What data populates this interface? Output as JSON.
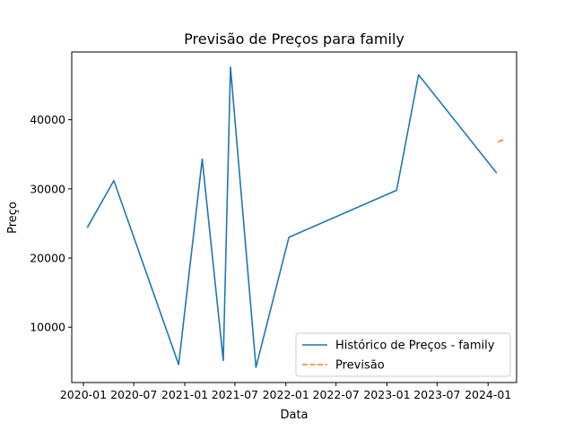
{
  "chart_data": {
    "type": "line",
    "title": "Previsão de Preços para family",
    "xlabel": "Data",
    "ylabel": "Preço",
    "x_ticks": [
      "2020-01",
      "2020-07",
      "2021-01",
      "2021-07",
      "2022-01",
      "2022-07",
      "2023-01",
      "2023-07",
      "2024-01"
    ],
    "y_ticks": [
      10000,
      20000,
      30000,
      40000
    ],
    "xlim": [
      "2019-11-20",
      "2024-04-13"
    ],
    "ylim": [
      2000,
      49800
    ],
    "grid": false,
    "legend_position": "bottom-right",
    "series": [
      {
        "name": "Histórico de Preços - family",
        "color": "#1f77b4",
        "style": "solid",
        "points": [
          {
            "x": "2020-01-15",
            "y": 24400
          },
          {
            "x": "2020-04-20",
            "y": 31200
          },
          {
            "x": "2020-12-10",
            "y": 4600
          },
          {
            "x": "2021-03-05",
            "y": 34300
          },
          {
            "x": "2021-05-20",
            "y": 5200
          },
          {
            "x": "2021-06-15",
            "y": 47600
          },
          {
            "x": "2021-09-15",
            "y": 4200
          },
          {
            "x": "2022-01-12",
            "y": 23000
          },
          {
            "x": "2023-02-05",
            "y": 29800
          },
          {
            "x": "2023-04-25",
            "y": 46500
          },
          {
            "x": "2024-02-01",
            "y": 32300
          }
        ]
      },
      {
        "name": "Previsão",
        "color": "#ff7f0e",
        "style": "dashed",
        "points": [
          {
            "x": "2024-02-06",
            "y": 36800
          },
          {
            "x": "2024-02-29",
            "y": 37200
          }
        ]
      }
    ]
  }
}
